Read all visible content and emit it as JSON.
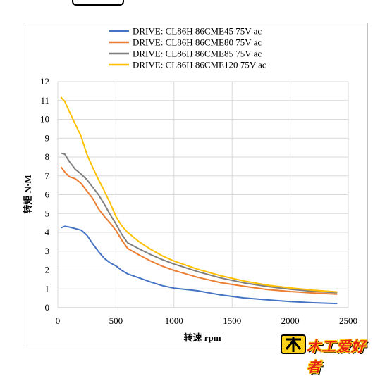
{
  "chart_data": {
    "type": "line",
    "title": "",
    "xlabel": "转速 rpm",
    "ylabel": "转矩 N·M",
    "xlim": [
      0,
      2500
    ],
    "ylim": [
      0,
      12
    ],
    "x_ticks": [
      "0",
      "500",
      "1000",
      "1500",
      "2000",
      "2500"
    ],
    "y_ticks": [
      "0",
      "1",
      "2",
      "3",
      "4",
      "5",
      "6",
      "7",
      "8",
      "9",
      "10",
      "11",
      "12"
    ],
    "grid": true,
    "legend_position": "top",
    "series": [
      {
        "name": "DRIVE: CL86H 86CME45 75V ac",
        "color": "#4472C4",
        "points": [
          [
            30,
            4.25
          ],
          [
            60,
            4.32
          ],
          [
            100,
            4.28
          ],
          [
            200,
            4.12
          ],
          [
            250,
            3.85
          ],
          [
            300,
            3.4
          ],
          [
            350,
            2.98
          ],
          [
            400,
            2.62
          ],
          [
            450,
            2.38
          ],
          [
            500,
            2.22
          ],
          [
            550,
            1.98
          ],
          [
            600,
            1.8
          ],
          [
            700,
            1.58
          ],
          [
            800,
            1.36
          ],
          [
            900,
            1.17
          ],
          [
            1000,
            1.04
          ],
          [
            1200,
            0.9
          ],
          [
            1400,
            0.68
          ],
          [
            1600,
            0.52
          ],
          [
            1800,
            0.42
          ],
          [
            2000,
            0.33
          ],
          [
            2200,
            0.26
          ],
          [
            2400,
            0.22
          ]
        ]
      },
      {
        "name": "DRIVE: CL86H 86CME80 75V ac",
        "color": "#ED7D31",
        "points": [
          [
            30,
            7.45
          ],
          [
            60,
            7.2
          ],
          [
            100,
            6.95
          ],
          [
            150,
            6.85
          ],
          [
            200,
            6.6
          ],
          [
            250,
            6.2
          ],
          [
            300,
            5.8
          ],
          [
            350,
            5.25
          ],
          [
            400,
            4.85
          ],
          [
            450,
            4.5
          ],
          [
            500,
            4.1
          ],
          [
            550,
            3.6
          ],
          [
            600,
            3.15
          ],
          [
            700,
            2.8
          ],
          [
            800,
            2.48
          ],
          [
            900,
            2.2
          ],
          [
            1000,
            1.98
          ],
          [
            1200,
            1.62
          ],
          [
            1400,
            1.33
          ],
          [
            1600,
            1.14
          ],
          [
            1800,
            0.97
          ],
          [
            2000,
            0.86
          ],
          [
            2200,
            0.78
          ],
          [
            2400,
            0.72
          ]
        ]
      },
      {
        "name": "DRIVE: CL86H 86CME85 75V ac",
        "color": "#7F7F7F",
        "points": [
          [
            30,
            8.2
          ],
          [
            60,
            8.15
          ],
          [
            100,
            7.75
          ],
          [
            150,
            7.35
          ],
          [
            200,
            7.1
          ],
          [
            250,
            6.8
          ],
          [
            300,
            6.4
          ],
          [
            350,
            6.0
          ],
          [
            400,
            5.5
          ],
          [
            450,
            4.95
          ],
          [
            500,
            4.45
          ],
          [
            550,
            3.9
          ],
          [
            600,
            3.45
          ],
          [
            700,
            3.12
          ],
          [
            800,
            2.82
          ],
          [
            900,
            2.55
          ],
          [
            1000,
            2.32
          ],
          [
            1200,
            1.92
          ],
          [
            1400,
            1.58
          ],
          [
            1600,
            1.32
          ],
          [
            1800,
            1.13
          ],
          [
            2000,
            0.98
          ],
          [
            2200,
            0.87
          ],
          [
            2400,
            0.8
          ]
        ]
      },
      {
        "name": "DRIVE: CL86H 86CME120 75V ac",
        "color": "#FFC000",
        "points": [
          [
            30,
            11.15
          ],
          [
            60,
            10.95
          ],
          [
            100,
            10.4
          ],
          [
            150,
            9.75
          ],
          [
            200,
            9.1
          ],
          [
            250,
            8.15
          ],
          [
            300,
            7.45
          ],
          [
            350,
            6.8
          ],
          [
            400,
            6.2
          ],
          [
            450,
            5.55
          ],
          [
            500,
            4.85
          ],
          [
            550,
            4.35
          ],
          [
            600,
            4.0
          ],
          [
            700,
            3.5
          ],
          [
            800,
            3.1
          ],
          [
            900,
            2.75
          ],
          [
            1000,
            2.48
          ],
          [
            1200,
            2.05
          ],
          [
            1400,
            1.7
          ],
          [
            1600,
            1.42
          ],
          [
            1800,
            1.2
          ],
          [
            2000,
            1.05
          ],
          [
            2200,
            0.93
          ],
          [
            2400,
            0.84
          ]
        ]
      }
    ]
  },
  "watermark": {
    "text": "木工爱好者"
  }
}
